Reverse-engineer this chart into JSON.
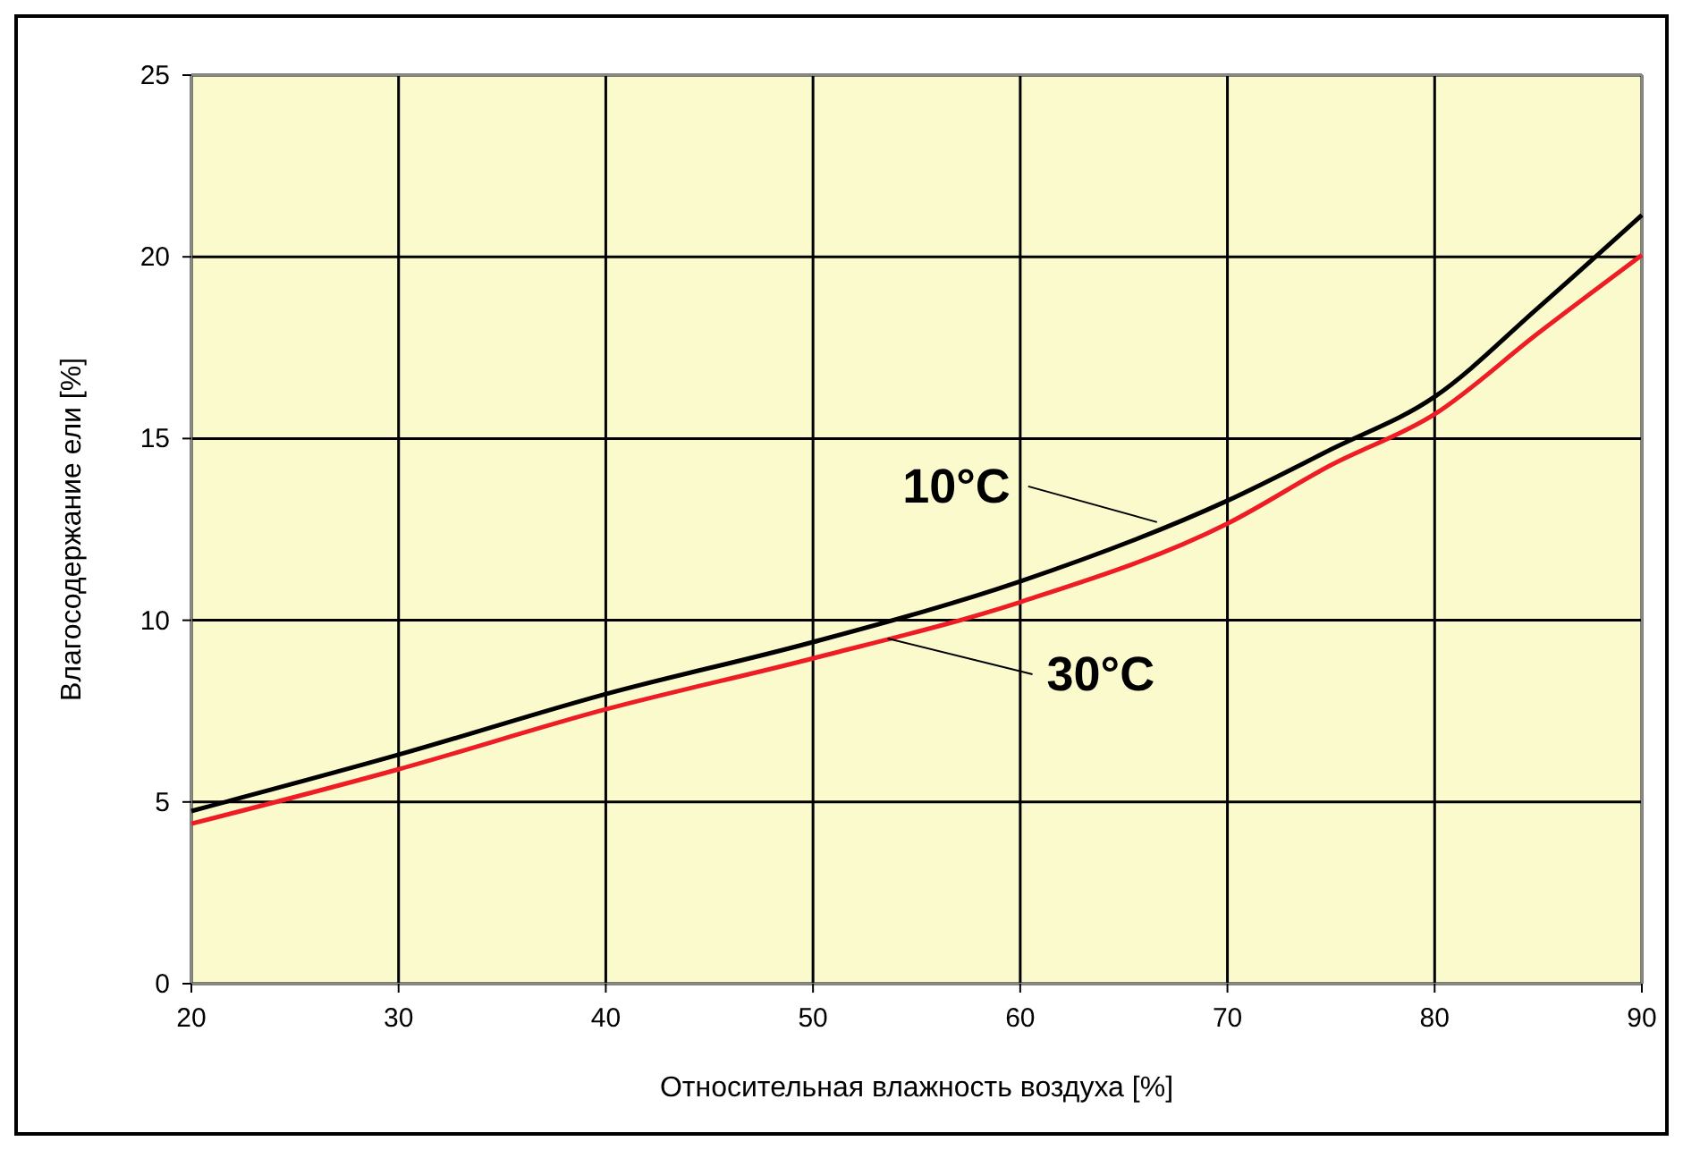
{
  "chart_data": {
    "type": "line",
    "xlabel": "Относительная влажность воздуха [%]",
    "ylabel": "Влагосодержание ели [%]",
    "x": [
      20,
      30,
      40,
      50,
      60,
      70,
      75,
      80,
      85,
      90
    ],
    "series": [
      {
        "color": "#000000",
        "values": [
          4.75,
          6.3,
          7.97,
          9.4,
          11.07,
          13.29,
          14.7,
          16.15,
          18.6,
          21.15
        ]
      },
      {
        "color": "#ee1c25",
        "values": [
          4.4,
          5.9,
          7.55,
          8.95,
          10.5,
          12.66,
          14.27,
          15.67,
          17.9,
          20.05
        ]
      }
    ],
    "xlim": [
      20,
      90
    ],
    "xticks": [
      20,
      30,
      40,
      50,
      60,
      70,
      80,
      90
    ],
    "ylim": [
      0,
      25
    ],
    "yticks": [
      0,
      5,
      10,
      15,
      20,
      25
    ],
    "grid": true,
    "marker": "none",
    "line_style": "solid",
    "annotations": [
      {
        "text": "10°C",
        "x": 66.6,
        "y": 12.7
      },
      {
        "text": "30°C",
        "x": 53.6,
        "y": 9.5
      }
    ]
  }
}
